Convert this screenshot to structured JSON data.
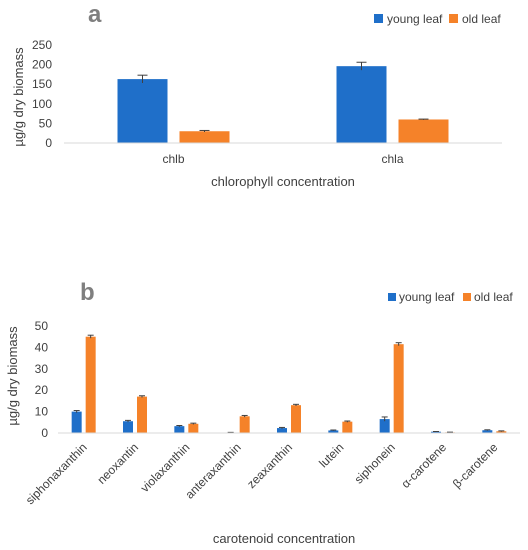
{
  "chart_data": [
    {
      "panel": "a",
      "type": "bar",
      "categories": [
        "chlb",
        "chla"
      ],
      "series": [
        {
          "name": "young leaf",
          "color": "#1f6fc9",
          "values": [
            163,
            196
          ],
          "errors": [
            10,
            10
          ]
        },
        {
          "name": "old leaf",
          "color": "#f58229",
          "values": [
            30,
            60
          ],
          "errors": [
            2,
            1
          ]
        }
      ],
      "xlabel": "chlorophyll concentration",
      "ylabel": "µg/g dry biomass",
      "ylim": [
        0,
        250
      ],
      "yticks": [
        "0",
        "50",
        "100",
        "150",
        "200",
        "250"
      ],
      "legend_position": "top-right",
      "grid": false
    },
    {
      "panel": "b",
      "type": "bar",
      "categories": [
        "siphonaxanthin",
        "neoxantin",
        "violaxanthin",
        "anteraxanthin",
        "zeaxanthin",
        "lutein",
        "siphonein",
        "α-carotene",
        "β-carotene"
      ],
      "series": [
        {
          "name": "young leaf",
          "color": "#1f6fc9",
          "values": [
            10,
            5.5,
            3.2,
            0.2,
            2.3,
            1.2,
            6.5,
            0.6,
            1.3
          ],
          "errors": [
            0.5,
            0.4,
            0.3,
            0.1,
            0.3,
            0.2,
            1.0,
            0.1,
            0.2
          ]
        },
        {
          "name": "old leaf",
          "color": "#f58229",
          "values": [
            45,
            17,
            4.3,
            7.8,
            13,
            5.3,
            41.5,
            0.3,
            0.8
          ],
          "errors": [
            0.7,
            0.4,
            0.3,
            0.4,
            0.4,
            0.3,
            0.7,
            0.1,
            0.2
          ]
        }
      ],
      "xlabel": "carotenoid concentration",
      "ylabel": "µg/g dry biomass",
      "ylim": [
        0,
        50
      ],
      "yticks": [
        "0",
        "10",
        "20",
        "30",
        "40",
        "50"
      ],
      "legend_position": "top-right",
      "grid": false
    }
  ]
}
